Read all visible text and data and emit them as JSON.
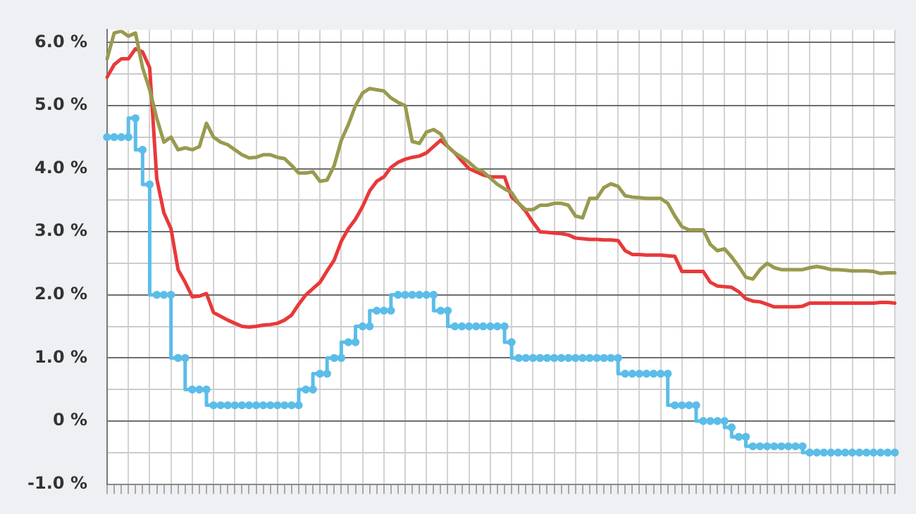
{
  "chart_data": {
    "type": "line",
    "categories": [
      null,
      null,
      null,
      null,
      null,
      null,
      null,
      null,
      null,
      null,
      null,
      null,
      null,
      null,
      null,
      null,
      null,
      null,
      null,
      null,
      null,
      null,
      null,
      null,
      null,
      null,
      null,
      null,
      null,
      null,
      null,
      null,
      null,
      null,
      null,
      null,
      null,
      null,
      null,
      null,
      null,
      null,
      null,
      null,
      null,
      null,
      null,
      null,
      null,
      null,
      null,
      null,
      null,
      null,
      null,
      null,
      null,
      null,
      null,
      null,
      null,
      null,
      null,
      null,
      null,
      null,
      null,
      null,
      null,
      null,
      null,
      null,
      null,
      null,
      null,
      null,
      null,
      null,
      null,
      null,
      null,
      null,
      null,
      null,
      null,
      null,
      null,
      null,
      null,
      null,
      null,
      null,
      null,
      null,
      null,
      null,
      null,
      null,
      null,
      null,
      null,
      null,
      null,
      null,
      null,
      null,
      null,
      null,
      null,
      null,
      null,
      null
    ],
    "series": [
      {
        "color": "#999a4f",
        "values": [
          5.74,
          6.15,
          6.18,
          6.1,
          6.15,
          5.6,
          5.25,
          4.8,
          4.42,
          4.5,
          4.3,
          4.33,
          4.3,
          4.35,
          4.72,
          4.5,
          4.42,
          4.38,
          4.3,
          4.22,
          4.17,
          4.18,
          4.22,
          4.22,
          4.18,
          4.16,
          4.05,
          3.93,
          3.93,
          3.95,
          3.8,
          3.82,
          4.05,
          4.45,
          4.7,
          5.0,
          5.2,
          5.27,
          5.25,
          5.23,
          5.12,
          5.05,
          5.0,
          4.43,
          4.4,
          4.58,
          4.62,
          4.55,
          4.35,
          4.25,
          4.18,
          4.1,
          4.0,
          3.95,
          3.85,
          3.75,
          3.68,
          3.62,
          3.45,
          3.35,
          3.35,
          3.42,
          3.42,
          3.45,
          3.45,
          3.42,
          3.25,
          3.22,
          3.53,
          3.53,
          3.7,
          3.76,
          3.72,
          3.57,
          3.55,
          3.54,
          3.53,
          3.53,
          3.53,
          3.45,
          3.25,
          3.08,
          3.03,
          3.03,
          3.03,
          2.8,
          2.7,
          2.73,
          2.6,
          2.45,
          2.28,
          2.25,
          2.4,
          2.5,
          2.43,
          2.4,
          2.4,
          2.4,
          2.4,
          2.43,
          2.45,
          2.43,
          2.4,
          2.4,
          2.39,
          2.38,
          2.38,
          2.38,
          2.37,
          2.34,
          2.35,
          2.35
        ]
      },
      {
        "color": "#e8393a",
        "values": [
          5.45,
          5.65,
          5.74,
          5.74,
          5.9,
          5.85,
          5.6,
          3.84,
          3.3,
          3.05,
          2.4,
          2.2,
          1.97,
          1.98,
          2.02,
          1.72,
          1.66,
          1.6,
          1.55,
          1.5,
          1.49,
          1.5,
          1.52,
          1.53,
          1.55,
          1.6,
          1.68,
          1.85,
          2.0,
          2.1,
          2.2,
          2.38,
          2.55,
          2.85,
          3.05,
          3.2,
          3.4,
          3.65,
          3.8,
          3.87,
          4.02,
          4.1,
          4.15,
          4.18,
          4.2,
          4.25,
          4.35,
          4.45,
          4.35,
          4.25,
          4.12,
          4.0,
          3.95,
          3.9,
          3.87,
          3.87,
          3.87,
          3.55,
          3.45,
          3.32,
          3.15,
          3.0,
          2.99,
          2.98,
          2.97,
          2.95,
          2.9,
          2.89,
          2.88,
          2.88,
          2.87,
          2.87,
          2.86,
          2.7,
          2.64,
          2.64,
          2.63,
          2.63,
          2.63,
          2.62,
          2.61,
          2.37,
          2.37,
          2.37,
          2.37,
          2.2,
          2.14,
          2.13,
          2.12,
          2.05,
          1.94,
          1.9,
          1.89,
          1.85,
          1.81,
          1.81,
          1.81,
          1.81,
          1.82,
          1.87,
          1.87,
          1.87,
          1.87,
          1.87,
          1.87,
          1.87,
          1.87,
          1.87,
          1.87,
          1.88,
          1.88,
          1.87
        ]
      },
      {
        "type": "step",
        "marker": "circle",
        "color": "#5bbde8",
        "values": [
          4.5,
          4.5,
          4.5,
          4.5,
          4.8,
          4.3,
          3.75,
          2.0,
          2.0,
          2.0,
          1.0,
          1.0,
          0.5,
          0.5,
          0.5,
          0.25,
          0.25,
          0.25,
          0.25,
          0.25,
          0.25,
          0.25,
          0.25,
          0.25,
          0.25,
          0.25,
          0.25,
          0.25,
          0.5,
          0.5,
          0.75,
          0.75,
          1.0,
          1.0,
          1.25,
          1.25,
          1.5,
          1.5,
          1.75,
          1.75,
          1.75,
          2.0,
          2.0,
          2.0,
          2.0,
          2.0,
          2.0,
          1.75,
          1.75,
          1.5,
          1.5,
          1.5,
          1.5,
          1.5,
          1.5,
          1.5,
          1.5,
          1.25,
          1.0,
          1.0,
          1.0,
          1.0,
          1.0,
          1.0,
          1.0,
          1.0,
          1.0,
          1.0,
          1.0,
          1.0,
          1.0,
          1.0,
          1.0,
          0.75,
          0.75,
          0.75,
          0.75,
          0.75,
          0.75,
          0.75,
          0.25,
          0.25,
          0.25,
          0.25,
          0,
          0,
          0,
          0,
          -0.1,
          -0.25,
          -0.25,
          -0.4,
          -0.4,
          -0.4,
          -0.4,
          -0.4,
          -0.4,
          -0.4,
          -0.4,
          -0.5,
          -0.5,
          -0.5,
          -0.5,
          -0.5,
          -0.5,
          -0.5,
          -0.5,
          -0.5,
          -0.5,
          -0.5,
          -0.5,
          -0.5
        ]
      }
    ],
    "ylim": [
      -1.0,
      6.2
    ],
    "yticks": [
      {
        "value": -1.0,
        "label": "-1.0 %"
      },
      {
        "value": -0.5,
        "label": null
      },
      {
        "value": 0,
        "label": "0 %"
      },
      {
        "value": 0.5,
        "label": null
      },
      {
        "value": 1.0,
        "label": "1.0 %"
      },
      {
        "value": 1.5,
        "label": null
      },
      {
        "value": 2.0,
        "label": "2.0 %"
      },
      {
        "value": 2.5,
        "label": null
      },
      {
        "value": 3.0,
        "label": "3.0 %"
      },
      {
        "value": 3.5,
        "label": null
      },
      {
        "value": 4.0,
        "label": "4.0 %"
      },
      {
        "value": 4.5,
        "label": null
      },
      {
        "value": 5.0,
        "label": "5.0 %"
      },
      {
        "value": 5.5,
        "label": null
      },
      {
        "value": 6.0,
        "label": "6.0 %"
      }
    ],
    "grid": true,
    "legend": false,
    "tick_labels": "y",
    "marker": "none",
    "line_style": "solid"
  }
}
